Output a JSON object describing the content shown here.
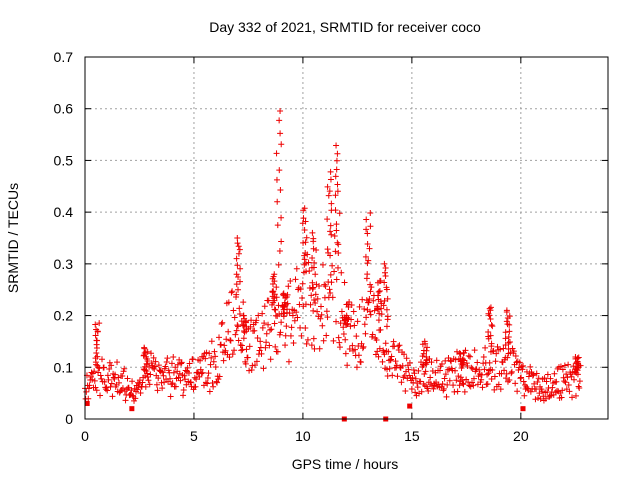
{
  "chart_data": {
    "type": "scatter",
    "title": "Day 332 of 2021, SRMTID for receiver coco",
    "xlabel": "GPS time / hours",
    "ylabel": "SRMTID / TECUs",
    "xlim": [
      0,
      24
    ],
    "ylim": [
      0,
      0.7
    ],
    "x_ticks": [
      0,
      5,
      10,
      15,
      20
    ],
    "x_tick_labels": [
      "0",
      "5",
      "10",
      "15",
      "20"
    ],
    "y_ticks": [
      0,
      0.1,
      0.2,
      0.3,
      0.4,
      0.5,
      0.6,
      0.7
    ],
    "y_tick_labels": [
      "0",
      "0.1",
      "0.2",
      "0.3",
      "0.4",
      "0.5",
      "0.6",
      "0.7"
    ],
    "grid": true,
    "marker": "+",
    "color": "#ee0000",
    "series": [
      {
        "name": "SRMTID",
        "profile": [
          [
            0.0,
            0.055
          ],
          [
            0.5,
            0.075
          ],
          [
            1.0,
            0.08
          ],
          [
            1.5,
            0.075
          ],
          [
            2.0,
            0.06
          ],
          [
            2.3,
            0.045
          ],
          [
            2.6,
            0.07
          ],
          [
            3.0,
            0.09
          ],
          [
            3.5,
            0.08
          ],
          [
            4.0,
            0.085
          ],
          [
            4.5,
            0.085
          ],
          [
            5.0,
            0.09
          ],
          [
            5.5,
            0.095
          ],
          [
            6.0,
            0.11
          ],
          [
            6.5,
            0.16
          ],
          [
            7.0,
            0.2
          ],
          [
            7.5,
            0.13
          ],
          [
            8.0,
            0.15
          ],
          [
            8.5,
            0.19
          ],
          [
            9.0,
            0.17
          ],
          [
            9.5,
            0.2
          ],
          [
            10.0,
            0.25
          ],
          [
            10.5,
            0.18
          ],
          [
            11.0,
            0.22
          ],
          [
            11.5,
            0.26
          ],
          [
            12.0,
            0.17
          ],
          [
            12.5,
            0.15
          ],
          [
            13.0,
            0.19
          ],
          [
            13.5,
            0.16
          ],
          [
            14.0,
            0.12
          ],
          [
            14.5,
            0.1
          ],
          [
            15.0,
            0.07
          ],
          [
            15.5,
            0.08
          ],
          [
            16.0,
            0.085
          ],
          [
            16.5,
            0.08
          ],
          [
            17.0,
            0.09
          ],
          [
            17.5,
            0.095
          ],
          [
            18.0,
            0.1
          ],
          [
            18.5,
            0.11
          ],
          [
            19.0,
            0.1
          ],
          [
            19.5,
            0.11
          ],
          [
            20.0,
            0.08
          ],
          [
            20.5,
            0.07
          ],
          [
            21.0,
            0.06
          ],
          [
            21.5,
            0.065
          ],
          [
            22.0,
            0.07
          ],
          [
            22.7,
            0.085
          ]
        ],
        "spikes": [
          [
            0.55,
            0.19
          ],
          [
            2.8,
            0.14
          ],
          [
            7.05,
            0.35
          ],
          [
            7.3,
            0.2
          ],
          [
            8.7,
            0.28
          ],
          [
            8.9,
            0.6
          ],
          [
            9.2,
            0.24
          ],
          [
            10.1,
            0.41
          ],
          [
            10.5,
            0.36
          ],
          [
            11.2,
            0.48
          ],
          [
            11.6,
            0.53
          ],
          [
            12.0,
            0.2
          ],
          [
            13.0,
            0.4
          ],
          [
            13.5,
            0.27
          ],
          [
            13.8,
            0.3
          ],
          [
            15.6,
            0.15
          ],
          [
            17.3,
            0.13
          ],
          [
            18.6,
            0.22
          ],
          [
            19.4,
            0.21
          ],
          [
            22.6,
            0.12
          ]
        ],
        "min_markers": [
          [
            0.1,
            0.03
          ],
          [
            2.15,
            0.02
          ],
          [
            11.9,
            0.0
          ],
          [
            13.8,
            0.0
          ],
          [
            14.9,
            0.025
          ],
          [
            20.1,
            0.02
          ]
        ]
      }
    ]
  }
}
